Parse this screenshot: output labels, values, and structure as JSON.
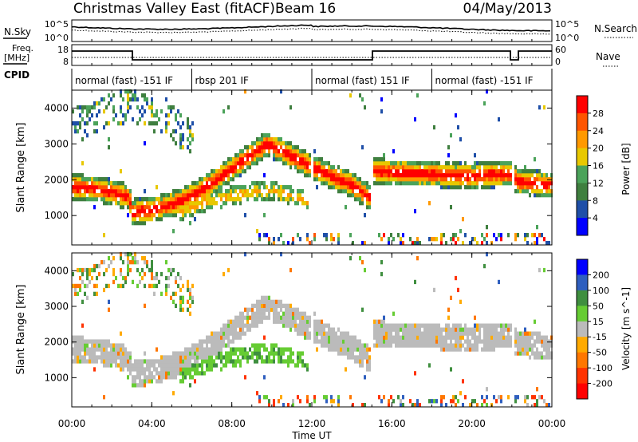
{
  "header": {
    "title": "Christmas Valley East (fitACF)",
    "beam": "Beam 16",
    "date": "04/May/2013"
  },
  "scan_panel": {
    "left_label": "N.Sky",
    "left_ticks": [
      "10^5",
      "10^0"
    ],
    "right_ticks": [
      "10^5",
      "10^0"
    ],
    "right_label": "N.Search"
  },
  "freq_panel": {
    "left_label_1": "Freq.",
    "left_label_2": "[MHz]",
    "left_ticks": [
      "18",
      "8"
    ],
    "right_ticks": [
      "60",
      "0"
    ],
    "right_label": "Nave"
  },
  "cpid": {
    "label": "CPID",
    "segments": [
      {
        "text": "normal (fast) -151 IF",
        "start_hour": 0.0
      },
      {
        "text": "rbsp 201 IF",
        "start_hour": 6.0
      },
      {
        "text": "normal (fast) 151 IF",
        "start_hour": 12.0
      },
      {
        "text": "normal (fast) -151 IF",
        "start_hour": 18.0
      }
    ]
  },
  "axes": {
    "x_label": "Time UT",
    "x_ticks": [
      "00:00",
      "04:00",
      "08:00",
      "12:00",
      "16:00",
      "20:00",
      "00:00"
    ],
    "y_label": "Slant Range [km]",
    "y_ticks": [
      "1000",
      "2000",
      "3000",
      "4000"
    ]
  },
  "power_scale": {
    "label": "Power [dB]",
    "ticks": [
      "4",
      "8",
      "12",
      "16",
      "20",
      "24",
      "28"
    ],
    "colors": [
      "#0000ff",
      "#1f4fa8",
      "#3f7f3f",
      "#4ba35a",
      "#e8c800",
      "#ff9900",
      "#ff5500",
      "#ff0000"
    ]
  },
  "velocity_scale": {
    "label": "Velocity [m s^-1]",
    "ticks": [
      "200",
      "100",
      "50",
      "15",
      "-15",
      "-50",
      "-100",
      "-200"
    ],
    "colors": [
      "#0000ff",
      "#2f5fbf",
      "#3f8f3f",
      "#66cc33",
      "#bbbbbb",
      "#ffaa00",
      "#ff7700",
      "#ff3300",
      "#ff0000"
    ]
  },
  "chart_data": {
    "type": "heatmap",
    "x_range_hours": [
      0,
      24
    ],
    "y_range_km": [
      180,
      4500
    ],
    "power_range_db": [
      0,
      30
    ],
    "velocity_range_ms": [
      -250,
      250
    ],
    "scatter_features": [
      {
        "name": "main band",
        "hours": [
          0,
          1,
          2,
          2.9,
          3.0,
          4,
          5,
          6,
          7,
          8,
          9,
          9.8,
          10.5,
          12,
          13,
          14,
          14.9,
          15,
          16,
          18,
          20,
          21.5,
          22,
          22.3,
          24
        ],
        "center_km": [
          1750,
          1700,
          1600,
          1450,
          1050,
          1100,
          1250,
          1500,
          1850,
          2250,
          2650,
          2950,
          2750,
          2300,
          2050,
          1800,
          1450,
          2200,
          2150,
          2100,
          2050,
          2100,
          2100,
          1900,
          1800
        ],
        "width_km": 350
      },
      {
        "name": "lower band",
        "hours": [
          5.5,
          6.5,
          8,
          9,
          10,
          11,
          11.8
        ],
        "center_km": [
          1050,
          1300,
          1500,
          1600,
          1650,
          1500,
          1350
        ],
        "width_km": 250
      },
      {
        "name": "far range",
        "hours": [
          0,
          1,
          2,
          3,
          4,
          5,
          6
        ],
        "center_km": [
          3400,
          3700,
          3900,
          4100,
          3800,
          3500,
          3100
        ],
        "width_km": 500
      }
    ]
  }
}
